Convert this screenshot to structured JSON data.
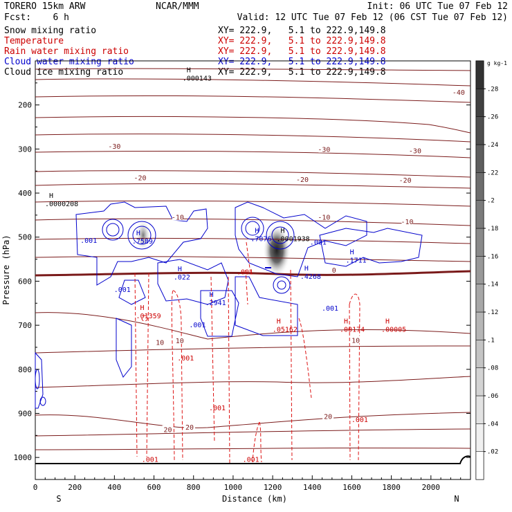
{
  "header": {
    "model": "TORERO  15km ARW",
    "center": "NCAR/MMM",
    "init": "Init: 06 UTC Tue 07 Feb 12",
    "fcst": "Fcst:    6 h",
    "valid": "Valid: 12 UTC Tue 07 Feb 12 (06 CST Tue 07 Feb 12)"
  },
  "legend": [
    {
      "label": "Snow mixing ratio",
      "xy": "XY= 222.9,   5.1 to 222.9,149.8",
      "color": "#000000"
    },
    {
      "label": "Temperature",
      "xy": "XY= 222.9,   5.1 to 222.9,149.8",
      "color": "#cc0000"
    },
    {
      "label": "Rain water mixing ratio",
      "xy": "XY= 222.9,   5.1 to 222.9,149.8",
      "color": "#cc0000"
    },
    {
      "label": "Cloud water mixing ratio",
      "xy": "XY= 222.9,   5.1 to 222.9,149.8",
      "color": "#0000cc"
    },
    {
      "label": "Cloud ice mixing ratio",
      "xy": "XY= 222.9,   5.1 to 222.9,149.8",
      "color": "#000000"
    }
  ],
  "colorbar": {
    "unit": "g kg-1",
    "ticks": [
      ".02",
      ".04",
      ".06",
      ".08",
      ".1",
      ".12",
      ".14",
      ".16",
      ".18",
      ".2",
      ".22",
      ".24",
      ".26",
      ".28"
    ],
    "values": [
      0.02,
      0.04,
      0.06,
      0.08,
      0.1,
      0.12,
      0.14,
      0.16,
      0.18,
      0.2,
      0.22,
      0.24,
      0.26,
      0.28
    ],
    "min": 0,
    "max": 0.3
  },
  "chart_data": {
    "type": "cross-section",
    "xlabel": "Distance (km)",
    "ylabel": "Pressure (hPa)",
    "xlim": [
      0,
      2200
    ],
    "ylim": [
      1050,
      100
    ],
    "x_ticks": [
      0,
      200,
      400,
      600,
      800,
      1000,
      1200,
      1400,
      1600,
      1800,
      2000
    ],
    "y_ticks": [
      200,
      300,
      400,
      500,
      600,
      700,
      800,
      900,
      1000
    ],
    "x_end_labels": {
      "left": "S",
      "right": "N"
    },
    "temperature_labels": [
      {
        "text": "-40",
        "x": 2140,
        "p": 172
      },
      {
        "text": "-30",
        "x": 400,
        "p": 295
      },
      {
        "text": "-30",
        "x": 1460,
        "p": 302
      },
      {
        "text": "-30",
        "x": 1920,
        "p": 305
      },
      {
        "text": "-20",
        "x": 530,
        "p": 366
      },
      {
        "text": "-20",
        "x": 1350,
        "p": 370
      },
      {
        "text": "-20",
        "x": 1870,
        "p": 372
      },
      {
        "text": "-10",
        "x": 720,
        "p": 456
      },
      {
        "text": "-10",
        "x": 1460,
        "p": 456
      },
      {
        "text": "-10",
        "x": 1880,
        "p": 466
      },
      {
        "text": "0",
        "x": 1510,
        "p": 576
      },
      {
        "text": "10",
        "x": 630,
        "p": 740
      },
      {
        "text": "10",
        "x": 730,
        "p": 736
      },
      {
        "text": "10",
        "x": 1620,
        "p": 735
      },
      {
        "text": "20",
        "x": 670,
        "p": 938
      },
      {
        "text": "20",
        "x": 780,
        "p": 932
      },
      {
        "text": "20",
        "x": 1480,
        "p": 908
      }
    ],
    "maxima_labels": [
      {
        "mark": "H",
        "value": ".0000208",
        "x": 70,
        "p": 420,
        "color": "#000000"
      },
      {
        "mark": "H",
        "value": ".000143",
        "x": 765,
        "p": 135,
        "color": "#000000"
      },
      {
        "mark": "H",
        "value": ".7589",
        "x": 510,
        "p": 505,
        "color": "#0000cc"
      },
      {
        "mark": "H",
        "value": ".7076",
        "x": 1110,
        "p": 500,
        "color": "#0000cc"
      },
      {
        "mark": "H",
        "value": ".0001938",
        "x": 1240,
        "p": 500,
        "color": "#000000"
      },
      {
        "mark": "H",
        "value": ".1711",
        "x": 1590,
        "p": 548,
        "color": "#0000cc"
      },
      {
        "mark": "H",
        "value": ".4268",
        "x": 1360,
        "p": 585,
        "color": "#0000cc"
      },
      {
        "mark": "H",
        "value": ".022",
        "x": 720,
        "p": 587,
        "color": "#0000cc"
      },
      {
        "mark": "H",
        "value": ".2941",
        "x": 880,
        "p": 645,
        "color": "#0000cc"
      },
      {
        "mark": "H",
        "value": ".01359",
        "x": 530,
        "p": 675,
        "color": "#cc0000"
      },
      {
        "mark": "H",
        "value": ".05162",
        "x": 1220,
        "p": 705,
        "color": "#cc0000"
      },
      {
        "mark": "H",
        "value": ".00174",
        "x": 1560,
        "p": 705,
        "color": "#cc0000"
      },
      {
        "mark": "H",
        "value": ".00005",
        "x": 1770,
        "p": 705,
        "color": "#cc0000"
      }
    ],
    "contour_value_labels": [
      {
        "text": ".001",
        "x": 270,
        "p": 508,
        "color": "#0000cc"
      },
      {
        "text": ".001",
        "x": 440,
        "p": 620,
        "color": "#0000cc"
      },
      {
        "text": ".001",
        "x": 820,
        "p": 700,
        "color": "#0000cc"
      },
      {
        "text": ".001",
        "x": 1060,
        "p": 580,
        "color": "#cc0000"
      },
      {
        "text": ".001",
        "x": 1430,
        "p": 512,
        "color": "#0000cc"
      },
      {
        "text": ".001",
        "x": 1490,
        "p": 662,
        "color": "#0000cc"
      },
      {
        "text": ".001",
        "x": 760,
        "p": 775,
        "color": "#cc0000"
      },
      {
        "text": ".001",
        "x": 920,
        "p": 888,
        "color": "#cc0000"
      },
      {
        "text": ".001",
        "x": 1640,
        "p": 915,
        "color": "#cc0000"
      },
      {
        "text": ".001",
        "x": 580,
        "p": 1005,
        "color": "#cc0000"
      },
      {
        "text": ".001",
        "x": 1090,
        "p": 1005,
        "color": "#cc0000"
      }
    ]
  }
}
